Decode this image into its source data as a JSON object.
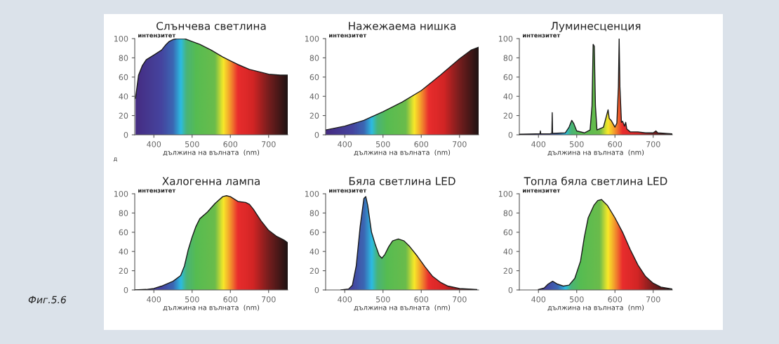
{
  "chart_data": [
    {
      "type": "area",
      "title": "Слънчева светлина",
      "xlabel": "дължина на вълната  (nm)",
      "ylabel": "интензитет",
      "xlim": [
        350,
        750
      ],
      "xticks": [
        400,
        500,
        600,
        700
      ],
      "ylim": [
        0,
        100
      ],
      "yticks": [
        0,
        20,
        40,
        60,
        80,
        100
      ],
      "annotations": [
        "д"
      ],
      "series": [
        {
          "color": "#1a1a1a",
          "x": [
            352,
            360,
            370,
            380,
            400,
            420,
            430,
            440,
            450,
            460,
            480,
            500,
            520,
            550,
            580,
            600,
            620,
            650,
            680,
            700,
            730,
            750
          ],
          "values": [
            38,
            62,
            72,
            78,
            83,
            88,
            93,
            97,
            99,
            100,
            100,
            97,
            94,
            88,
            81,
            77,
            73,
            68,
            65,
            63,
            62,
            62
          ]
        }
      ]
    },
    {
      "type": "area",
      "title": "Нажежаема нишка",
      "xlabel": "дължина на вълната  (nm)",
      "ylabel": "интензитет",
      "xlim": [
        350,
        750
      ],
      "xticks": [
        400,
        500,
        600,
        700
      ],
      "ylim": [
        0,
        100
      ],
      "yticks": [
        0,
        20,
        40,
        60,
        80,
        100
      ],
      "series": [
        {
          "color": "#1a1a1a",
          "x": [
            350,
            400,
            450,
            500,
            550,
            600,
            650,
            700,
            730,
            750
          ],
          "values": [
            5,
            9,
            15,
            24,
            34,
            46,
            62,
            79,
            88,
            91
          ]
        }
      ]
    },
    {
      "type": "area",
      "title": "Луминесценция",
      "xlabel": "дължина на вълната  (nm)",
      "ylabel": "интензитет",
      "xlim": [
        350,
        750
      ],
      "xticks": [
        400,
        500,
        600,
        700
      ],
      "ylim": [
        0,
        100
      ],
      "yticks": [
        0,
        20,
        40,
        60,
        80,
        100
      ],
      "series": [
        {
          "color": "#1a1a1a",
          "x": [
            350,
            400,
            404,
            405,
            406,
            430,
            435,
            436,
            437,
            470,
            480,
            487,
            492,
            500,
            520,
            535,
            540,
            543,
            546,
            549,
            553,
            570,
            578,
            582,
            585,
            590,
            600,
            605,
            609,
            611,
            613,
            617,
            620,
            625,
            628,
            631,
            640,
            660,
            680,
            700,
            707,
            712,
            750
          ],
          "values": [
            0.5,
            1,
            1,
            4,
            1,
            1,
            1.5,
            23,
            1.5,
            2,
            8,
            15,
            12,
            4,
            2,
            5,
            30,
            94,
            92,
            30,
            5,
            8,
            20,
            26,
            17,
            15,
            8,
            12,
            50,
            100,
            50,
            13,
            14,
            9,
            13,
            6,
            3,
            3,
            2,
            2,
            4,
            2,
            1
          ]
        }
      ]
    },
    {
      "type": "area",
      "title": "Халогенна лампа",
      "xlabel": "дължина на вълната  (nm)",
      "ylabel": "интензитет",
      "xlim": [
        350,
        750
      ],
      "xticks": [
        400,
        500,
        600,
        700
      ],
      "ylim": [
        0,
        100
      ],
      "yticks": [
        0,
        20,
        40,
        60,
        80,
        100
      ],
      "annotations": [
        "Фиг.5.6"
      ],
      "series": [
        {
          "color": "#1a1a1a",
          "x": [
            350,
            380,
            400,
            420,
            450,
            470,
            480,
            490,
            500,
            510,
            520,
            540,
            560,
            580,
            590,
            600,
            620,
            640,
            650,
            660,
            680,
            700,
            720,
            740,
            750
          ],
          "values": [
            0,
            0.5,
            1.5,
            4,
            9,
            15,
            25,
            42,
            55,
            66,
            74,
            81,
            90,
            97,
            98,
            97,
            92,
            91,
            89,
            84,
            72,
            62,
            56,
            52,
            49
          ]
        }
      ]
    },
    {
      "type": "area",
      "title": "Бяла светлина LED",
      "xlabel": "дължина на вълната  (nm)",
      "ylabel": "интензитет",
      "xlim": [
        350,
        750
      ],
      "xticks": [
        400,
        500,
        600,
        700
      ],
      "ylim": [
        0,
        100
      ],
      "yticks": [
        0,
        20,
        40,
        60,
        80,
        100
      ],
      "series": [
        {
          "color": "#1a1a1a",
          "x": [
            390,
            410,
            420,
            430,
            440,
            450,
            455,
            460,
            470,
            480,
            490,
            497,
            505,
            515,
            525,
            540,
            555,
            570,
            590,
            610,
            630,
            650,
            670,
            700,
            745
          ],
          "values": [
            0,
            1,
            5,
            25,
            65,
            95,
            97,
            88,
            60,
            47,
            36,
            33,
            37,
            45,
            51,
            53,
            51,
            45,
            35,
            24,
            14,
            8,
            4,
            1.5,
            0.5
          ]
        }
      ]
    },
    {
      "type": "area",
      "title": "Топла бяла светлина LED",
      "xlabel": "дължина на вълната  (nm)",
      "ylabel": "интензитет",
      "xlim": [
        350,
        750
      ],
      "xticks": [
        400,
        500,
        600,
        700
      ],
      "ylim": [
        0,
        100
      ],
      "yticks": [
        0,
        20,
        40,
        60,
        80,
        100
      ],
      "series": [
        {
          "color": "#1a1a1a",
          "x": [
            400,
            415,
            425,
            437,
            450,
            465,
            480,
            495,
            510,
            520,
            530,
            545,
            555,
            565,
            580,
            600,
            620,
            640,
            660,
            680,
            700,
            720,
            750
          ],
          "values": [
            0.5,
            2,
            6,
            9,
            6,
            4,
            5,
            12,
            30,
            55,
            75,
            88,
            93,
            94,
            88,
            75,
            60,
            42,
            26,
            14,
            7,
            3,
            1
          ]
        }
      ]
    }
  ]
}
